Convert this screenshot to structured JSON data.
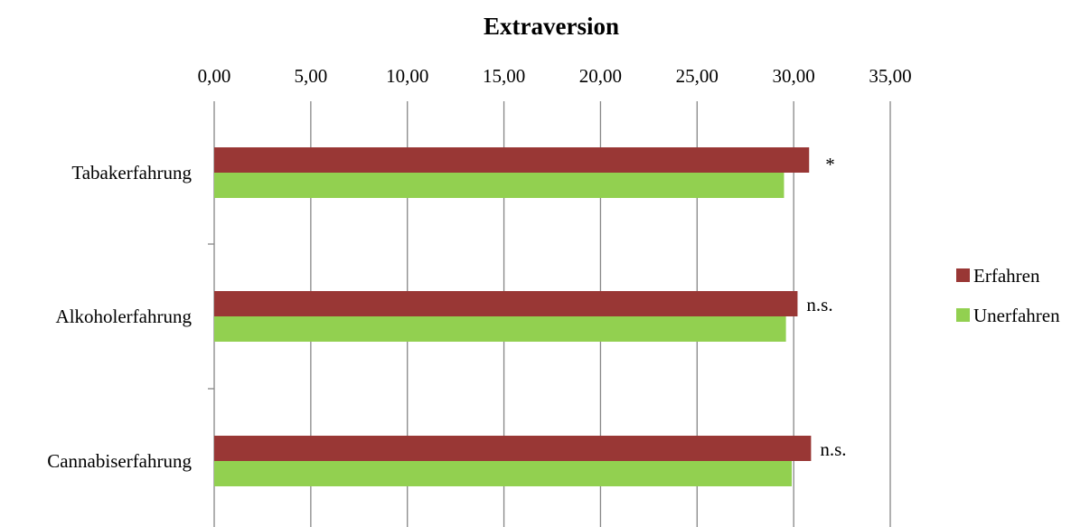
{
  "chart_data": {
    "type": "bar",
    "orientation": "horizontal",
    "title": "Extraversion",
    "categories": [
      "Tabakerfahrung",
      "Alkoholerfahrung",
      "Cannabiserfahrung"
    ],
    "series": [
      {
        "name": "Erfahren",
        "values": [
          30.8,
          30.2,
          30.9
        ],
        "color": "#993735"
      },
      {
        "name": "Unerfahren",
        "values": [
          29.5,
          29.6,
          29.9
        ],
        "color": "#92d050"
      }
    ],
    "annotations": [
      "*",
      "n.s.",
      "n.s."
    ],
    "xlim": [
      0,
      35
    ],
    "ticks": [
      "0,00",
      "5,00",
      "10,00",
      "15,00",
      "20,00",
      "25,00",
      "30,00",
      "35,00"
    ],
    "x_axis_position": "top",
    "grid": true,
    "legend": "right"
  }
}
